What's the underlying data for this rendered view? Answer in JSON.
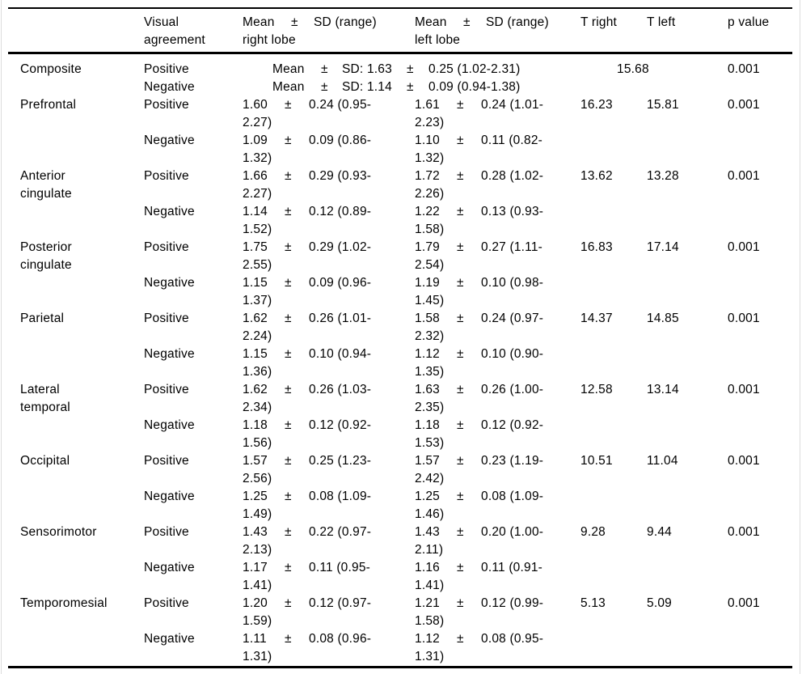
{
  "symbols": {
    "plus_minus": "±"
  },
  "table": {
    "header": {
      "region": "",
      "visual_agreement": "Visual agreement",
      "right_lobe": {
        "mean": "Mean",
        "pm": "±",
        "sd": "SD (range)",
        "sub": "right lobe"
      },
      "left_lobe": {
        "mean": "Mean",
        "pm": "±",
        "sd": "SD (range)",
        "sub": "left lobe"
      },
      "t_right": "T right",
      "t_left": "T left",
      "p_value": "p value"
    },
    "rows": [
      {
        "region": "Composite",
        "region_lines": [
          "Composite"
        ],
        "entries": [
          {
            "agreement": "Positive",
            "merged": [
              "Mean",
              "±",
              "SD: 1.63",
              "±",
              "0.25 (1.02-2.31)"
            ],
            "t_merged": "15.68",
            "p": "0.001"
          },
          {
            "agreement": "Negative",
            "merged": [
              "Mean",
              "±",
              "SD: 1.14",
              "±",
              "0.09 (0.94-1.38)"
            ]
          }
        ]
      },
      {
        "region": "Prefrontal",
        "region_lines": [
          "Prefrontal"
        ],
        "entries": [
          {
            "agreement": "Positive",
            "right": {
              "mean": "1.60",
              "sd": "0.24 (0.95-",
              "cont": "2.27)"
            },
            "left": {
              "mean": "1.61",
              "sd": "0.24 (1.01-",
              "cont": "2.23)"
            },
            "t_right": "16.23",
            "t_left": "15.81",
            "p": "0.001"
          },
          {
            "agreement": "Negative",
            "right": {
              "mean": "1.09",
              "sd": "0.09 (0.86-",
              "cont": "1.32)"
            },
            "left": {
              "mean": "1.10",
              "sd": "0.11 (0.82-",
              "cont": "1.32)"
            }
          }
        ]
      },
      {
        "region": "Anterior cingulate",
        "region_lines": [
          "Anterior",
          "cingulate"
        ],
        "entries": [
          {
            "agreement": "Positive",
            "right": {
              "mean": "1.66",
              "sd": "0.29 (0.93-",
              "cont": "2.27)"
            },
            "left": {
              "mean": "1.72",
              "sd": "0.28 (1.02-",
              "cont": "2.26)"
            },
            "t_right": "13.62",
            "t_left": "13.28",
            "p": "0.001"
          },
          {
            "agreement": "Negative",
            "right": {
              "mean": "1.14",
              "sd": "0.12 (0.89-",
              "cont": "1.52)"
            },
            "left": {
              "mean": "1.22",
              "sd": "0.13 (0.93-",
              "cont": "1.58)"
            }
          }
        ]
      },
      {
        "region": "Posterior cingulate",
        "region_lines": [
          "Posterior",
          "cingulate"
        ],
        "entries": [
          {
            "agreement": "Positive",
            "right": {
              "mean": "1.75",
              "sd": "0.29 (1.02-",
              "cont": "2.55)"
            },
            "left": {
              "mean": "1.79",
              "sd": "0.27 (1.11-",
              "cont": "2.54)"
            },
            "t_right": "16.83",
            "t_left": "17.14",
            "p": "0.001"
          },
          {
            "agreement": "Negative",
            "right": {
              "mean": "1.15",
              "sd": "0.09 (0.96-",
              "cont": "1.37)"
            },
            "left": {
              "mean": "1.19",
              "sd": "0.10 (0.98-",
              "cont": "1.45)"
            }
          }
        ]
      },
      {
        "region": "Parietal",
        "region_lines": [
          "Parietal"
        ],
        "entries": [
          {
            "agreement": "Positive",
            "right": {
              "mean": "1.62",
              "sd": "0.26 (1.01-",
              "cont": "2.24)"
            },
            "left": {
              "mean": "1.58",
              "sd": "0.24 (0.97-",
              "cont": "2.32)"
            },
            "t_right": "14.37",
            "t_left": "14.85",
            "p": "0.001"
          },
          {
            "agreement": "Negative",
            "right": {
              "mean": "1.15",
              "sd": "0.10 (0.94-",
              "cont": "1.36)"
            },
            "left": {
              "mean": "1.12",
              "sd": "0.10 (0.90-",
              "cont": "1.35)"
            }
          }
        ]
      },
      {
        "region": "Lateral temporal",
        "region_lines": [
          "Lateral",
          "temporal"
        ],
        "entries": [
          {
            "agreement": "Positive",
            "right": {
              "mean": "1.62",
              "sd": "0.26 (1.03-",
              "cont": "2.34)"
            },
            "left": {
              "mean": "1.63",
              "sd": "0.26 (1.00-",
              "cont": "2.35)"
            },
            "t_right": "12.58",
            "t_left": "13.14",
            "p": "0.001"
          },
          {
            "agreement": "Negative",
            "right": {
              "mean": "1.18",
              "sd": "0.12 (0.92-",
              "cont": "1.56)"
            },
            "left": {
              "mean": "1.18",
              "sd": "0.12 (0.92-",
              "cont": "1.53)"
            }
          }
        ]
      },
      {
        "region": "Occipital",
        "region_lines": [
          "Occipital"
        ],
        "entries": [
          {
            "agreement": "Positive",
            "right": {
              "mean": "1.57",
              "sd": "0.25 (1.23-",
              "cont": "2.56)"
            },
            "left": {
              "mean": "1.57",
              "sd": "0.23 (1.19-",
              "cont": "2.42)"
            },
            "t_right": "10.51",
            "t_left": "11.04",
            "p": "0.001"
          },
          {
            "agreement": "Negative",
            "right": {
              "mean": "1.25",
              "sd": "0.08 (1.09-",
              "cont": "1.49)"
            },
            "left": {
              "mean": "1.25",
              "sd": "0.08 (1.09-",
              "cont": "1.46)"
            }
          }
        ]
      },
      {
        "region": "Sensorimotor",
        "region_lines": [
          "Sensorimotor"
        ],
        "entries": [
          {
            "agreement": "Positive",
            "right": {
              "mean": "1.43",
              "sd": "0.22 (0.97-",
              "cont": "2.13)"
            },
            "left": {
              "mean": "1.43",
              "sd": "0.20 (1.00-",
              "cont": "2.11)"
            },
            "t_right": "9.28",
            "t_left": "9.44",
            "p": "0.001"
          },
          {
            "agreement": "Negative",
            "right": {
              "mean": "1.17",
              "sd": "0.11 (0.95-",
              "cont": "1.41)"
            },
            "left": {
              "mean": "1.16",
              "sd": "0.11 (0.91-",
              "cont": "1.41)"
            }
          }
        ]
      },
      {
        "region": "Temporomesial",
        "region_lines": [
          "Temporomesial"
        ],
        "entries": [
          {
            "agreement": "Positive",
            "right": {
              "mean": "1.20",
              "sd": "0.12 (0.97-",
              "cont": "1.59)"
            },
            "left": {
              "mean": "1.21",
              "sd": "0.12 (0.99-",
              "cont": "1.58)"
            },
            "t_right": "5.13",
            "t_left": "5.09",
            "p": "0.001"
          },
          {
            "agreement": "Negative",
            "right": {
              "mean": "1.11",
              "sd": "0.08 (0.96-",
              "cont": "1.31)"
            },
            "left": {
              "mean": "1.12",
              "sd": "0.08 (0.95-",
              "cont": "1.31)"
            }
          }
        ]
      }
    ]
  }
}
